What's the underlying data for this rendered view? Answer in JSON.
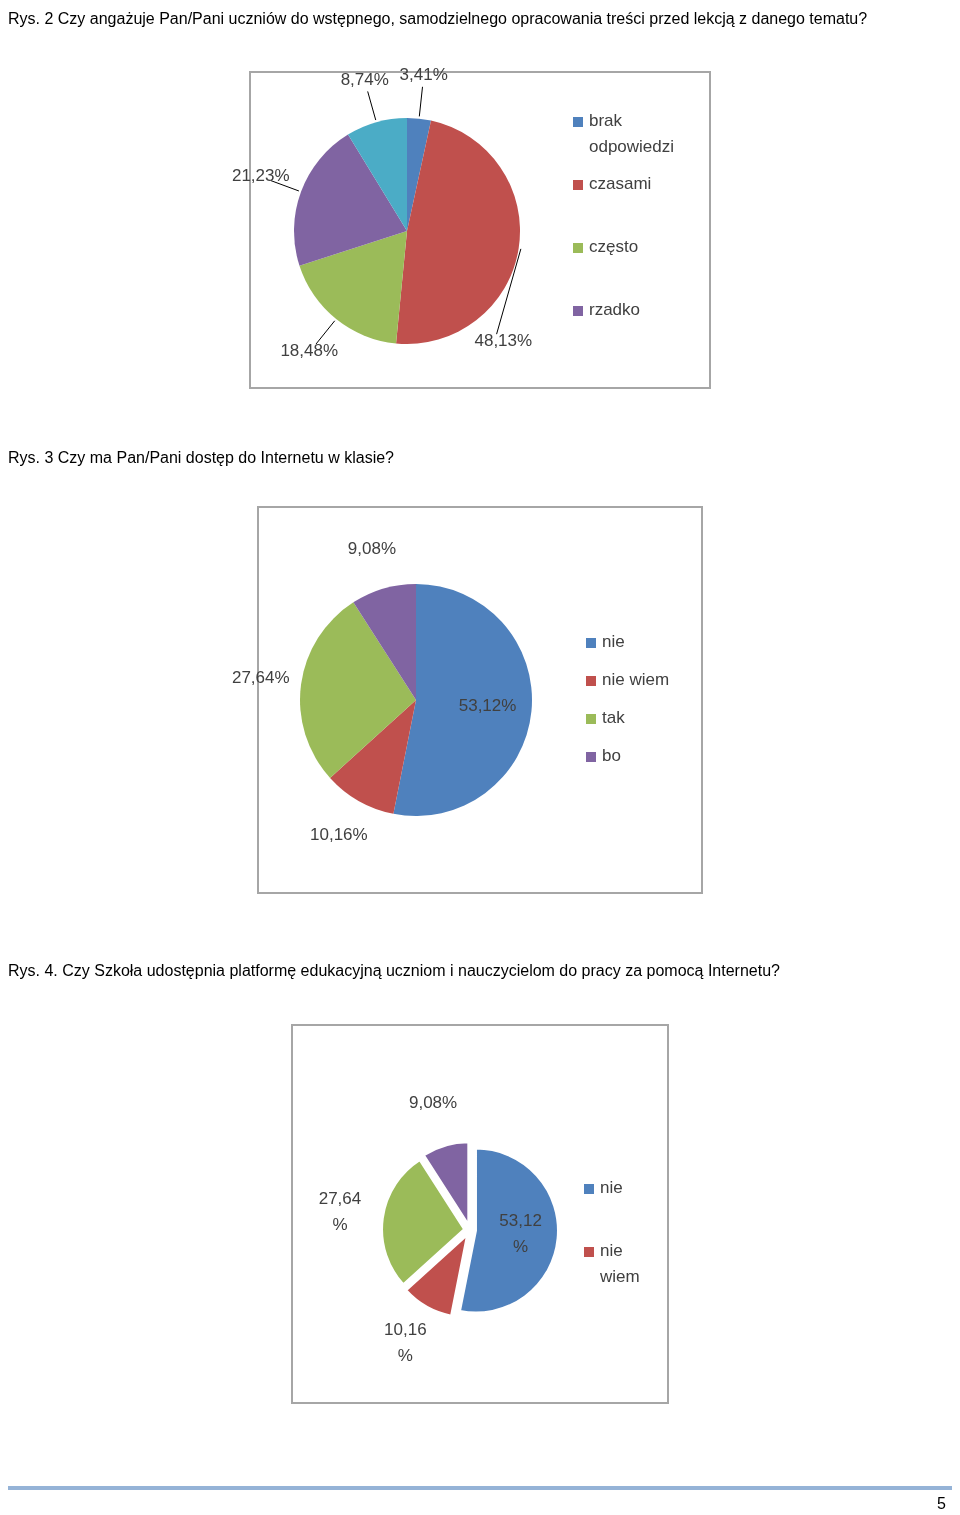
{
  "chart_data": [
    {
      "type": "pie",
      "title": "Rys. 2 Czy angażuje Pan/Pani uczniów do wstępnego, samodzielnego opracowania treści przed lekcją z danego tematu?",
      "categories": [
        "brak odpowiedzi",
        "czasami",
        "często",
        "rzadko",
        null
      ],
      "values": [
        3.41,
        48.13,
        18.48,
        21.23,
        8.74
      ],
      "value_labels": [
        "3,41%",
        "48,13%",
        "18,48%",
        "21,23%",
        "8,74%"
      ],
      "colors": [
        "#4f81bd",
        "#c0504d",
        "#9bbb59",
        "#8064a2",
        "#4bacc6"
      ],
      "legend": "right"
    },
    {
      "type": "pie",
      "title": "Rys. 3 Czy ma Pan/Pani dostęp do Internetu w klasie?",
      "categories": [
        "nie",
        "nie wiem",
        "tak",
        "bo"
      ],
      "values": [
        53.12,
        10.16,
        27.64,
        9.08
      ],
      "value_labels": [
        "53,12%",
        "10,16%",
        "27,64%",
        "9,08%"
      ],
      "colors": [
        "#4f81bd",
        "#c0504d",
        "#9bbb59",
        "#8064a2"
      ],
      "legend": "right"
    },
    {
      "type": "pie",
      "title": "Rys. 4. Czy Szkoła udostępnia platformę edukacyjną uczniom i nauczycielom do pracy za pomocą Internetu?",
      "categories": [
        "nie",
        "nie wiem",
        null,
        null
      ],
      "values": [
        53.12,
        10.16,
        27.64,
        9.08
      ],
      "value_labels": [
        "53,12 %",
        "10,16 %",
        "27,64 %",
        "9,08%"
      ],
      "colors": [
        "#4f81bd",
        "#c0504d",
        "#9bbb59",
        "#8064a2"
      ],
      "legend": "right",
      "annotations": [
        "5"
      ]
    }
  ]
}
